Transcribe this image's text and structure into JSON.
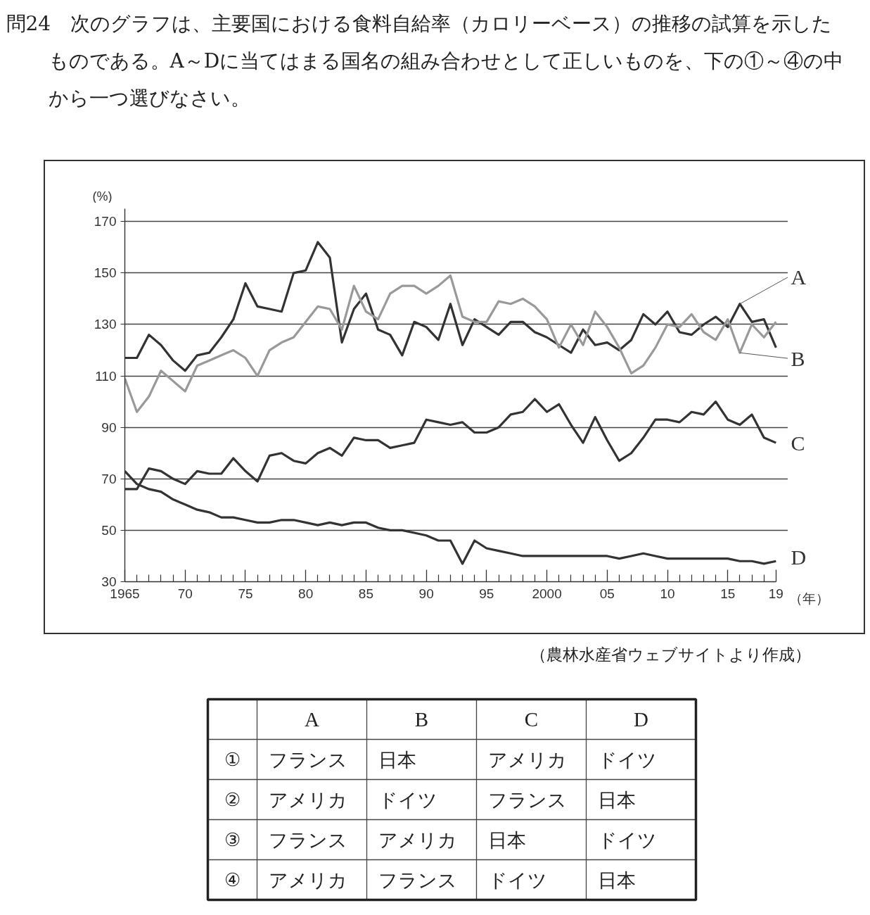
{
  "chart_data": [
    {
      "type": "line",
      "title": "問24　次のグラフは、主要国における食料自給率（カロリーベース）の推移の試算を示したものである。A～Dに当てはまる国名の組み合わせとして正しいものを、下の①～④の中から一つ選びなさい。",
      "ylabel": "(%)",
      "xlabel": "（年）",
      "annotations": [
        "（農林水産省ウェブサイトより作成）"
      ],
      "x": [
        1965,
        1966,
        1967,
        1968,
        1969,
        1970,
        1971,
        1972,
        1973,
        1974,
        1975,
        1976,
        1977,
        1978,
        1979,
        1980,
        1981,
        1982,
        1983,
        1984,
        1985,
        1986,
        1987,
        1988,
        1989,
        1990,
        1991,
        1992,
        1993,
        1994,
        1995,
        1996,
        1997,
        1998,
        1999,
        2000,
        2001,
        2002,
        2003,
        2004,
        2005,
        2006,
        2007,
        2008,
        2009,
        2010,
        2011,
        2012,
        2013,
        2014,
        2015,
        2016,
        2017,
        2018,
        2019
      ],
      "series": [
        {
          "name": "A",
          "color": "#333333",
          "values": [
            117,
            117,
            126,
            122,
            116,
            112,
            118,
            119,
            125,
            132,
            146,
            137,
            136,
            135,
            150,
            151,
            162,
            156,
            123,
            136,
            142,
            128,
            126,
            118,
            131,
            129,
            124,
            138,
            122,
            132,
            129,
            126,
            131,
            131,
            127,
            125,
            122,
            119,
            128,
            122,
            123,
            120,
            124,
            134,
            130,
            135,
            127,
            126,
            130,
            133,
            129,
            138,
            131,
            132,
            121
          ]
        },
        {
          "name": "B",
          "color": "#999999",
          "values": [
            109,
            96,
            102,
            112,
            108,
            104,
            114,
            116,
            118,
            120,
            117,
            110,
            120,
            123,
            125,
            131,
            137,
            136,
            128,
            145,
            135,
            132,
            142,
            145,
            145,
            142,
            145,
            149,
            133,
            131,
            131,
            139,
            138,
            140,
            137,
            132,
            121,
            130,
            122,
            135,
            129,
            121,
            111,
            114,
            121,
            130,
            129,
            134,
            127,
            124,
            132,
            119,
            130,
            125,
            131
          ]
        },
        {
          "name": "C",
          "color": "#333333",
          "values": [
            66,
            66,
            74,
            73,
            70,
            68,
            73,
            72,
            72,
            78,
            73,
            69,
            79,
            80,
            77,
            76,
            80,
            82,
            79,
            86,
            85,
            85,
            82,
            83,
            84,
            93,
            92,
            91,
            92,
            88,
            88,
            90,
            95,
            96,
            101,
            96,
            99,
            91,
            84,
            94,
            85,
            77,
            80,
            86,
            93,
            93,
            92,
            96,
            95,
            100,
            93,
            91,
            95,
            86,
            84
          ]
        },
        {
          "name": "D",
          "color": "#333333",
          "values": [
            73,
            68,
            66,
            65,
            62,
            60,
            58,
            57,
            55,
            55,
            54,
            53,
            53,
            54,
            54,
            53,
            52,
            53,
            52,
            53,
            53,
            51,
            50,
            50,
            49,
            48,
            46,
            46,
            37,
            46,
            43,
            42,
            41,
            40,
            40,
            40,
            40,
            40,
            40,
            40,
            40,
            39,
            40,
            41,
            40,
            39,
            39,
            39,
            39,
            39,
            39,
            38,
            38,
            37,
            38
          ]
        }
      ],
      "xlim": [
        1965,
        2020
      ],
      "ylim": [
        30,
        175
      ],
      "xticks": [
        {
          "value": 1965,
          "label": "1965"
        },
        {
          "value": 1966,
          "label": null
        },
        {
          "value": 1967,
          "label": null
        },
        {
          "value": 1968,
          "label": null
        },
        {
          "value": 1969,
          "label": null
        },
        {
          "value": 1970,
          "label": "70"
        },
        {
          "value": 1971,
          "label": null
        },
        {
          "value": 1972,
          "label": null
        },
        {
          "value": 1973,
          "label": null
        },
        {
          "value": 1974,
          "label": null
        },
        {
          "value": 1975,
          "label": "75"
        },
        {
          "value": 1976,
          "label": null
        },
        {
          "value": 1977,
          "label": null
        },
        {
          "value": 1978,
          "label": null
        },
        {
          "value": 1979,
          "label": null
        },
        {
          "value": 1980,
          "label": "80"
        },
        {
          "value": 1981,
          "label": null
        },
        {
          "value": 1982,
          "label": null
        },
        {
          "value": 1983,
          "label": null
        },
        {
          "value": 1984,
          "label": null
        },
        {
          "value": 1985,
          "label": "85"
        },
        {
          "value": 1986,
          "label": null
        },
        {
          "value": 1987,
          "label": null
        },
        {
          "value": 1988,
          "label": null
        },
        {
          "value": 1989,
          "label": null
        },
        {
          "value": 1990,
          "label": "90"
        },
        {
          "value": 1991,
          "label": null
        },
        {
          "value": 1992,
          "label": null
        },
        {
          "value": 1993,
          "label": null
        },
        {
          "value": 1994,
          "label": null
        },
        {
          "value": 1995,
          "label": "95"
        },
        {
          "value": 1996,
          "label": null
        },
        {
          "value": 1997,
          "label": null
        },
        {
          "value": 1998,
          "label": null
        },
        {
          "value": 1999,
          "label": null
        },
        {
          "value": 2000,
          "label": "2000"
        },
        {
          "value": 2001,
          "label": null
        },
        {
          "value": 2002,
          "label": null
        },
        {
          "value": 2003,
          "label": null
        },
        {
          "value": 2004,
          "label": null
        },
        {
          "value": 2005,
          "label": "05"
        },
        {
          "value": 2006,
          "label": null
        },
        {
          "value": 2007,
          "label": null
        },
        {
          "value": 2008,
          "label": null
        },
        {
          "value": 2009,
          "label": null
        },
        {
          "value": 2010,
          "label": "10"
        },
        {
          "value": 2011,
          "label": null
        },
        {
          "value": 2012,
          "label": null
        },
        {
          "value": 2013,
          "label": null
        },
        {
          "value": 2014,
          "label": null
        },
        {
          "value": 2015,
          "label": "15"
        },
        {
          "value": 2016,
          "label": null
        },
        {
          "value": 2017,
          "label": null
        },
        {
          "value": 2018,
          "label": null
        },
        {
          "value": 2019,
          "label": "19"
        }
      ],
      "yticks": [
        30,
        50,
        70,
        90,
        110,
        130,
        150,
        170
      ],
      "grid": "y",
      "line_style": "solid"
    },
    {
      "type": "other",
      "categories": [
        "A",
        "B",
        "C",
        "D"
      ],
      "y_categories": [
        "①",
        "②",
        "③",
        "④"
      ],
      "cell_labels": [
        [
          "フランス",
          "日本",
          "アメリカ",
          "ドイツ"
        ],
        [
          "アメリカ",
          "ドイツ",
          "フランス",
          "日本"
        ],
        [
          "フランス",
          "アメリカ",
          "日本",
          "ドイツ"
        ],
        [
          "アメリカ",
          "フランス",
          "ドイツ",
          "日本"
        ]
      ]
    }
  ]
}
